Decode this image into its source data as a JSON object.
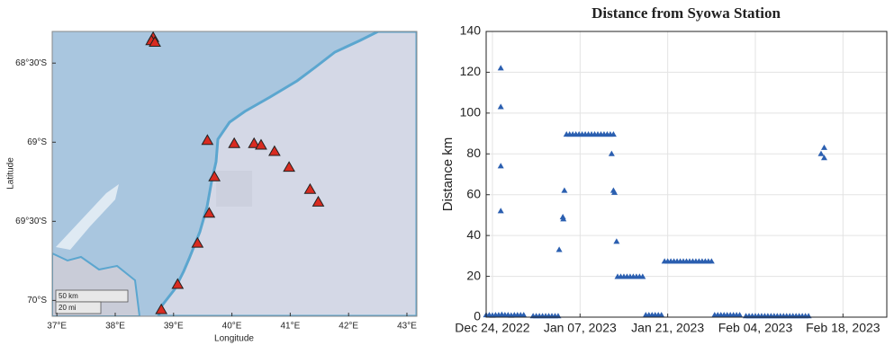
{
  "chart_data": [
    {
      "type": "scatter",
      "xlabel": "Longitude",
      "ylabel": "Latitude",
      "scale_bar": [
        "50 km",
        "20 mi"
      ],
      "color": "#d92b20",
      "x": [
        38.65,
        38.62,
        38.68,
        39.58,
        40.04,
        40.38,
        40.5,
        40.73,
        39.7,
        40.98,
        41.34,
        41.48,
        39.61,
        39.41,
        39.07,
        38.79
      ],
      "values": [
        -68.34,
        -68.36,
        -68.37,
        -68.99,
        -69.01,
        -69.01,
        -69.02,
        -69.06,
        -69.22,
        -69.16,
        -69.3,
        -69.38,
        -69.45,
        -69.64,
        -69.9,
        -70.06
      ],
      "xlim": [
        36.92,
        43.17
      ],
      "ylim": [
        -70.1,
        -68.3
      ],
      "xticks": [
        {
          "value": 37,
          "label": "37°E"
        },
        {
          "value": 38,
          "label": "38°E"
        },
        {
          "value": 39,
          "label": "39°E"
        },
        {
          "value": 40,
          "label": "40°E"
        },
        {
          "value": 41,
          "label": "41°E"
        },
        {
          "value": 42,
          "label": "42°E"
        },
        {
          "value": 43,
          "label": "43°E"
        }
      ],
      "yticks": [
        {
          "value": -68.5,
          "label": "68°30'S"
        },
        {
          "value": -69,
          "label": "69°S"
        },
        {
          "value": -69.5,
          "label": "69°30'S"
        },
        {
          "value": -70,
          "label": "70°S"
        }
      ],
      "grid": false
    },
    {
      "type": "scatter",
      "title": "Distance from Syowa Station",
      "ylabel": "Distance km",
      "color": "#2b5fb0",
      "x": [
        "2022-12-23T00:00",
        "2022-12-23T12:00",
        "2022-12-24T00:00",
        "2022-12-24T12:00",
        "2022-12-25T00:00",
        "2022-12-25T12:00",
        "2022-12-26T00:00",
        "2022-12-26T12:00",
        "2022-12-27T00:00",
        "2022-12-27T12:00",
        "2022-12-28T00:00",
        "2022-12-28T12:00",
        "2022-12-29T00:00",
        "2022-12-25T08:00",
        "2022-12-25T08:00",
        "2022-12-25T08:00",
        "2022-12-25T08:00",
        "2022-12-30T12:00",
        "2022-12-31T00:00",
        "2022-12-31T12:00",
        "2023-01-01T00:00",
        "2023-01-01T12:00",
        "2023-01-02T00:00",
        "2023-01-02T12:00",
        "2023-01-03T00:00",
        "2023-01-03T12:00",
        "2023-01-03T16:00",
        "2023-01-04T06:00",
        "2023-01-04T08:00",
        "2023-01-04T12:00",
        "2023-01-04T20:00",
        "2023-01-05T08:00",
        "2023-01-05T20:00",
        "2023-01-06T08:00",
        "2023-01-06T20:00",
        "2023-01-07T08:00",
        "2023-01-07T20:00",
        "2023-01-08T08:00",
        "2023-01-08T20:00",
        "2023-01-09T08:00",
        "2023-01-09T20:00",
        "2023-01-10T08:00",
        "2023-01-10T20:00",
        "2023-01-11T08:00",
        "2023-01-11T20:00",
        "2023-01-12T08:00",
        "2023-01-12T01:00",
        "2023-01-12T08:00",
        "2023-01-12T12:00",
        "2023-01-12T20:00",
        "2023-01-13T00:00",
        "2023-01-13T12:00",
        "2023-01-14T00:00",
        "2023-01-14T12:00",
        "2023-01-15T00:00",
        "2023-01-15T12:00",
        "2023-01-16T00:00",
        "2023-01-16T12:00",
        "2023-01-17T00:00",
        "2023-01-17T12:00",
        "2023-01-18T00:00",
        "2023-01-18T12:00",
        "2023-01-19T00:00",
        "2023-01-19T12:00",
        "2023-01-20T00:00",
        "2023-01-20T12:00",
        "2023-01-21T00:00",
        "2023-01-21T12:00",
        "2023-01-22T00:00",
        "2023-01-22T12:00",
        "2023-01-23T00:00",
        "2023-01-23T12:00",
        "2023-01-24T00:00",
        "2023-01-24T12:00",
        "2023-01-25T00:00",
        "2023-01-25T12:00",
        "2023-01-26T00:00",
        "2023-01-26T12:00",
        "2023-01-27T00:00",
        "2023-01-27T12:00",
        "2023-01-28T00:00",
        "2023-01-28T12:00",
        "2023-01-29T00:00",
        "2023-01-29T12:00",
        "2023-01-30T00:00",
        "2023-01-30T12:00",
        "2023-01-31T00:00",
        "2023-01-31T12:00",
        "2023-02-01T00:00",
        "2023-02-01T12:00",
        "2023-02-02T12:00",
        "2023-02-03T00:00",
        "2023-02-03T12:00",
        "2023-02-04T00:00",
        "2023-02-04T12:00",
        "2023-02-05T00:00",
        "2023-02-05T12:00",
        "2023-02-06T00:00",
        "2023-02-06T12:00",
        "2023-02-07T00:00",
        "2023-02-07T12:00",
        "2023-02-08T00:00",
        "2023-02-08T12:00",
        "2023-02-09T00:00",
        "2023-02-09T12:00",
        "2023-02-10T00:00",
        "2023-02-10T12:00",
        "2023-02-11T00:00",
        "2023-02-11T12:00",
        "2023-02-12T00:00",
        "2023-02-12T12:00",
        "2023-02-14T12:00",
        "2023-02-15T00:00",
        "2023-02-15T00:00"
      ],
      "values": [
        1,
        1,
        0.8,
        1,
        1,
        1.2,
        1,
        1,
        0.8,
        1,
        1,
        1,
        1,
        122,
        103,
        74,
        52,
        0.5,
        0.5,
        0.5,
        0.5,
        0.5,
        0.5,
        0.5,
        0.5,
        0.5,
        33,
        49,
        48,
        62,
        89.5,
        89.5,
        89.5,
        89.5,
        89.5,
        89.5,
        89.5,
        89.5,
        89.5,
        89.5,
        89.5,
        89.5,
        89.5,
        89.5,
        89.5,
        89.5,
        80,
        62,
        61,
        37,
        19.8,
        19.8,
        19.8,
        19.8,
        19.8,
        19.8,
        19.8,
        19.8,
        19.8,
        1,
        1,
        1,
        1,
        1,
        1,
        27.3,
        27.3,
        27.3,
        27.3,
        27.3,
        27.3,
        27.3,
        27.3,
        27.3,
        27.3,
        27.3,
        27.3,
        27.3,
        27.3,
        27.3,
        27.3,
        1,
        1,
        1,
        1,
        1,
        1,
        1,
        1,
        1,
        0.5,
        0.5,
        0.5,
        0.5,
        0.5,
        0.5,
        0.5,
        0.5,
        0.5,
        0.5,
        0.5,
        0.5,
        0.5,
        0.5,
        0.5,
        0.5,
        0.5,
        0.5,
        0.5,
        0.5,
        0.5,
        80,
        78,
        83
      ],
      "xlim": [
        "2022-12-23T00:00",
        "2023-02-25T00:00"
      ],
      "ylim": [
        0,
        140
      ],
      "xticks": [
        {
          "value": "2022-12-24T00:00",
          "label": "Dec 24, 2022"
        },
        {
          "value": "2023-01-07T00:00",
          "label": "Jan 07, 2023"
        },
        {
          "value": "2023-01-21T00:00",
          "label": "Jan 21, 2023"
        },
        {
          "value": "2023-02-04T00:00",
          "label": "Feb 04, 2023"
        },
        {
          "value": "2023-02-18T00:00",
          "label": "Feb 18, 2023"
        }
      ],
      "yticks": [
        0,
        20,
        40,
        60,
        80,
        100,
        120,
        140
      ],
      "grid": true
    }
  ]
}
